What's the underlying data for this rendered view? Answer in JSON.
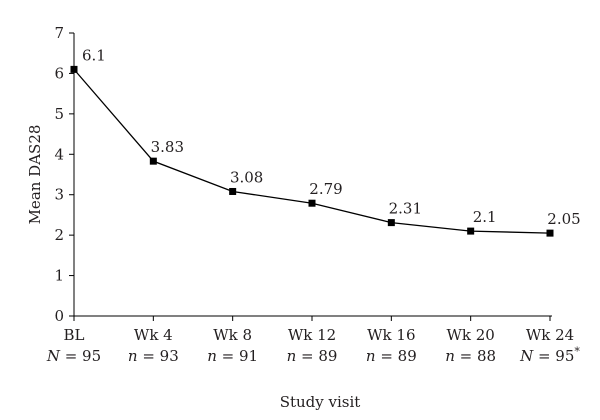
{
  "chart_data": {
    "type": "line",
    "categories": [
      "BL",
      "Wk 4",
      "Wk 8",
      "Wk 12",
      "Wk 16",
      "Wk 20",
      "Wk 24"
    ],
    "n_labels": [
      {
        "sym": "N",
        "val": " = 95",
        "sup": ""
      },
      {
        "sym": "n",
        "val": " = 93",
        "sup": ""
      },
      {
        "sym": "n",
        "val": " = 91",
        "sup": ""
      },
      {
        "sym": "n",
        "val": " = 89",
        "sup": ""
      },
      {
        "sym": "n",
        "val": " = 89",
        "sup": ""
      },
      {
        "sym": "n",
        "val": " = 88",
        "sup": ""
      },
      {
        "sym": "N",
        "val": " = 95",
        "sup": "*"
      }
    ],
    "values": [
      6.1,
      3.83,
      3.08,
      2.79,
      2.31,
      2.1,
      2.05
    ],
    "value_labels": [
      "6.1",
      "3.83",
      "3.08",
      "2.79",
      "2.31",
      "2.1",
      "2.05"
    ],
    "xlabel": "Study visit",
    "ylabel": "Mean DAS28",
    "ylim": [
      0,
      7
    ],
    "yticks": [
      0,
      1,
      2,
      3,
      4,
      5,
      6,
      7
    ],
    "grid": false,
    "line_color": "#000000",
    "marker": "square"
  }
}
